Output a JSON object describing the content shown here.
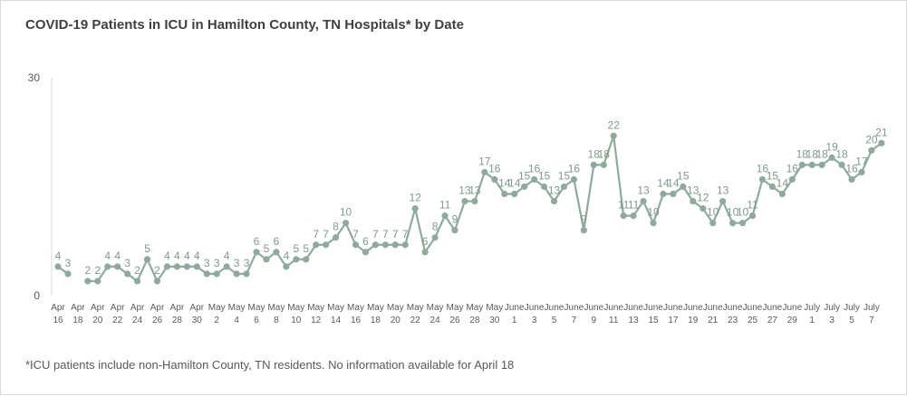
{
  "chart_data": {
    "type": "line",
    "title": "COVID-19 Patients in ICU in Hamilton County, TN Hospitals* by Date",
    "footnote": "*ICU patients include non-Hamilton County, TN residents. No information available for April 18",
    "ylim": [
      0,
      30
    ],
    "y_ticks": [
      "0",
      "30"
    ],
    "grid": false,
    "line_color": "#8faa9c",
    "marker_color": "#8faa9c",
    "label_color": "#7d9a8c",
    "axis_color": "#d9d9d9",
    "tick_label_color": "#595959",
    "x_tick_labels": [
      [
        "Apr",
        "16"
      ],
      [
        "Apr",
        "18"
      ],
      [
        "Apr",
        "20"
      ],
      [
        "Apr",
        "22"
      ],
      [
        "Apr",
        "24"
      ],
      [
        "Apr",
        "26"
      ],
      [
        "Apr",
        "28"
      ],
      [
        "Apr",
        "30"
      ],
      [
        "May",
        "2"
      ],
      [
        "May",
        "4"
      ],
      [
        "May",
        "6"
      ],
      [
        "May",
        "8"
      ],
      [
        "May",
        "10"
      ],
      [
        "May",
        "12"
      ],
      [
        "May",
        "14"
      ],
      [
        "May",
        "16"
      ],
      [
        "May",
        "18"
      ],
      [
        "May",
        "20"
      ],
      [
        "May",
        "22"
      ],
      [
        "May",
        "24"
      ],
      [
        "May",
        "26"
      ],
      [
        "May",
        "28"
      ],
      [
        "May",
        "30"
      ],
      [
        "June",
        "1"
      ],
      [
        "June",
        "3"
      ],
      [
        "June",
        "5"
      ],
      [
        "June",
        "7"
      ],
      [
        "June",
        "9"
      ],
      [
        "June",
        "11"
      ],
      [
        "June",
        "13"
      ],
      [
        "June",
        "15"
      ],
      [
        "June",
        "17"
      ],
      [
        "June",
        "19"
      ],
      [
        "June",
        "21"
      ],
      [
        "June",
        "23"
      ],
      [
        "June",
        "25"
      ],
      [
        "June",
        "27"
      ],
      [
        "June",
        "29"
      ],
      [
        "July",
        "1"
      ],
      [
        "July",
        "3"
      ],
      [
        "July",
        "5"
      ],
      [
        "July",
        "7"
      ]
    ],
    "values": [
      4,
      3,
      null,
      2,
      2,
      4,
      4,
      3,
      2,
      5,
      2,
      4,
      4,
      4,
      4,
      3,
      3,
      4,
      3,
      3,
      6,
      5,
      6,
      4,
      5,
      5,
      7,
      7,
      8,
      10,
      7,
      6,
      7,
      7,
      7,
      7,
      12,
      6,
      8,
      11,
      9,
      13,
      13,
      17,
      16,
      14,
      14,
      15,
      16,
      15,
      13,
      15,
      16,
      9,
      18,
      18,
      22,
      11,
      11,
      13,
      10,
      14,
      14,
      15,
      13,
      12,
      10,
      13,
      10,
      10,
      11,
      16,
      15,
      14,
      16,
      18,
      18,
      18,
      19,
      18,
      16,
      17,
      20,
      21
    ]
  }
}
